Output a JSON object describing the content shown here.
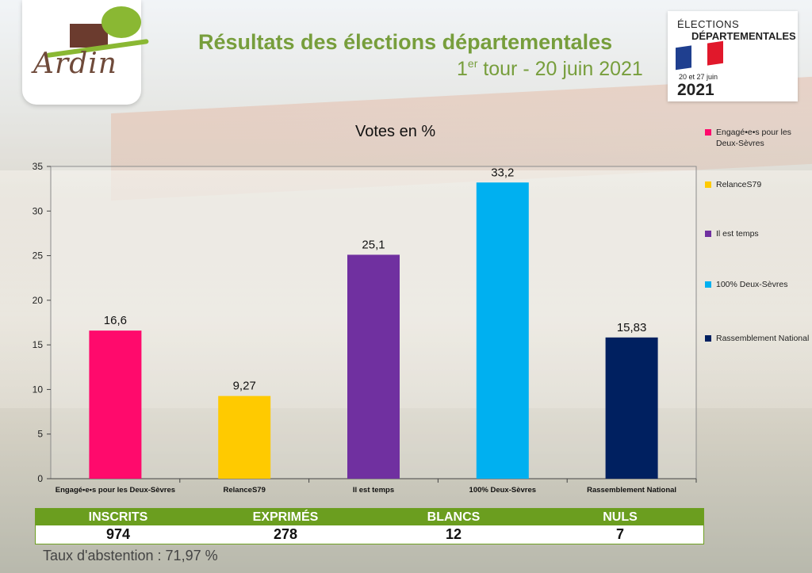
{
  "logo": {
    "text": "Ardin"
  },
  "header": {
    "title": "Résultats des élections départementales",
    "subtitle_prefix": "1",
    "subtitle_sup": "er",
    "subtitle_rest": " tour - 20 juin 2021"
  },
  "badge": {
    "line1": "ÉLECTIONS",
    "line2": "DÉPARTEMENTALES",
    "dates": "20 et 27 juin",
    "year": "2021",
    "flag_colors": [
      "#1f3f8f",
      "#ffffff",
      "#e1182b"
    ]
  },
  "chart_data": {
    "type": "bar",
    "title": "Votes en %",
    "categories": [
      "Engagé•e•s pour les Deux-Sèvres",
      "RelanceS79",
      "Il est temps",
      "100% Deux-Sèvres",
      "Rassemblement National"
    ],
    "values": [
      16.6,
      9.27,
      25.1,
      33.2,
      15.83
    ],
    "data_labels": [
      "16,6",
      "9,27",
      "25,1",
      "33,2",
      "15,83"
    ],
    "colors": [
      "#ff0a6c",
      "#ffca00",
      "#7030a0",
      "#00b0f0",
      "#002060"
    ],
    "ylim": [
      0,
      35
    ],
    "yticks": [
      0,
      5,
      10,
      15,
      20,
      25,
      30,
      35
    ],
    "xlabel": "",
    "ylabel": "",
    "grid": false,
    "legend_position": "right",
    "legend": [
      "Engagé•e•s pour les Deux-Sèvres",
      "RelanceS79",
      "Il est temps",
      "100% Deux-Sèvres",
      "Rassemblement National"
    ]
  },
  "table": {
    "headers": [
      "INSCRITS",
      "EXPRIMÉS",
      "BLANCS",
      "NULS"
    ],
    "values": [
      "974",
      "278",
      "12",
      "7"
    ]
  },
  "abstention": {
    "label": "Taux d'abstention : ",
    "value": "71,97 %"
  }
}
